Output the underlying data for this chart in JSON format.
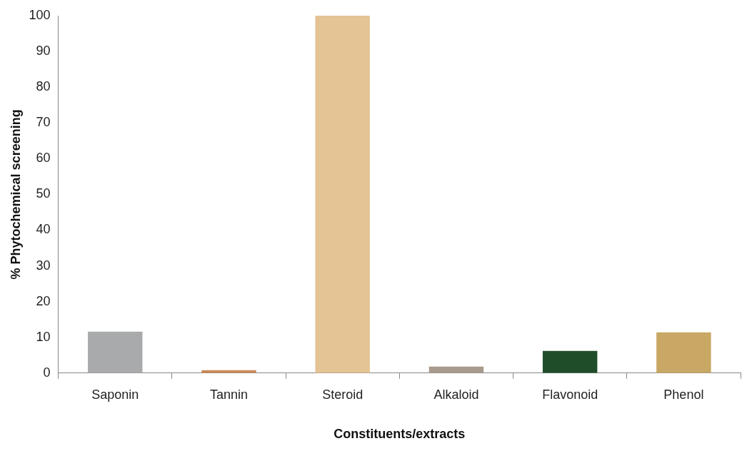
{
  "chart_data": {
    "type": "bar",
    "xlabel": "Constituents/extracts",
    "ylabel": "% Phytochemical screening",
    "categories": [
      "Saponin",
      "Tannin",
      "Steroid",
      "Alkaloid",
      "Flavonoid",
      "Phenol"
    ],
    "values": [
      11.6,
      0.8,
      100,
      1.8,
      6.2,
      11.4
    ],
    "colors": [
      "#a9aaac",
      "#c88a5a",
      "#e4c394",
      "#a89a8c",
      "#1f4d2a",
      "#c8a864"
    ],
    "ylim": [
      0,
      100
    ],
    "yticks": [
      0,
      10,
      20,
      30,
      40,
      50,
      60,
      70,
      80,
      90,
      100
    ],
    "grid": false,
    "legend": false
  }
}
